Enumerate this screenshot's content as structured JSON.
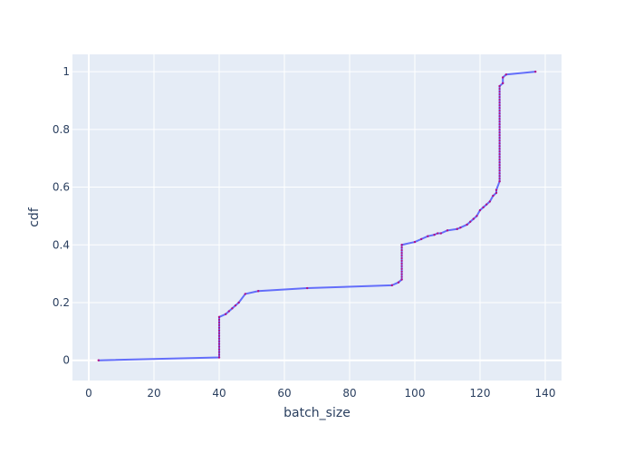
{
  "chart_data": {
    "type": "line",
    "title": "",
    "xlabel": "batch_size",
    "ylabel": "cdf",
    "xlim": [
      -5,
      145
    ],
    "ylim": [
      -0.07,
      1.06
    ],
    "xticks": [
      0,
      20,
      40,
      60,
      80,
      100,
      120,
      140
    ],
    "yticks": [
      0,
      0.2,
      0.4,
      0.6,
      0.8,
      1
    ],
    "grid": true,
    "legend": "none",
    "colors": {
      "background": "#ffffff",
      "plot_bg": "#e5ecf6",
      "grid": "#ffffff",
      "line": "#636efa",
      "markers": "#b0128a",
      "text": "#2a3f5f"
    },
    "series": [
      {
        "x": [
          3,
          40,
          40,
          42,
          43,
          44,
          45,
          46,
          48,
          52,
          67,
          93,
          95,
          96,
          96,
          100,
          102,
          104,
          106,
          107,
          108,
          110,
          113,
          114,
          116,
          117,
          118,
          119,
          120,
          121,
          122,
          123,
          124,
          125,
          125,
          126,
          126,
          127,
          127,
          128,
          137
        ],
        "y": [
          0,
          0.01,
          0.15,
          0.16,
          0.17,
          0.18,
          0.19,
          0.2,
          0.23,
          0.24,
          0.25,
          0.26,
          0.27,
          0.28,
          0.4,
          0.41,
          0.42,
          0.43,
          0.435,
          0.44,
          0.44,
          0.45,
          0.455,
          0.46,
          0.47,
          0.48,
          0.49,
          0.5,
          0.52,
          0.53,
          0.54,
          0.55,
          0.57,
          0.58,
          0.59,
          0.62,
          0.95,
          0.96,
          0.98,
          0.99,
          1.0
        ]
      }
    ],
    "marker_columns": [
      {
        "x": 40,
        "from": 0.01,
        "to": 0.15
      },
      {
        "x": 96,
        "from": 0.28,
        "to": 0.4
      },
      {
        "x": 126,
        "from": 0.62,
        "to": 0.95
      }
    ]
  }
}
